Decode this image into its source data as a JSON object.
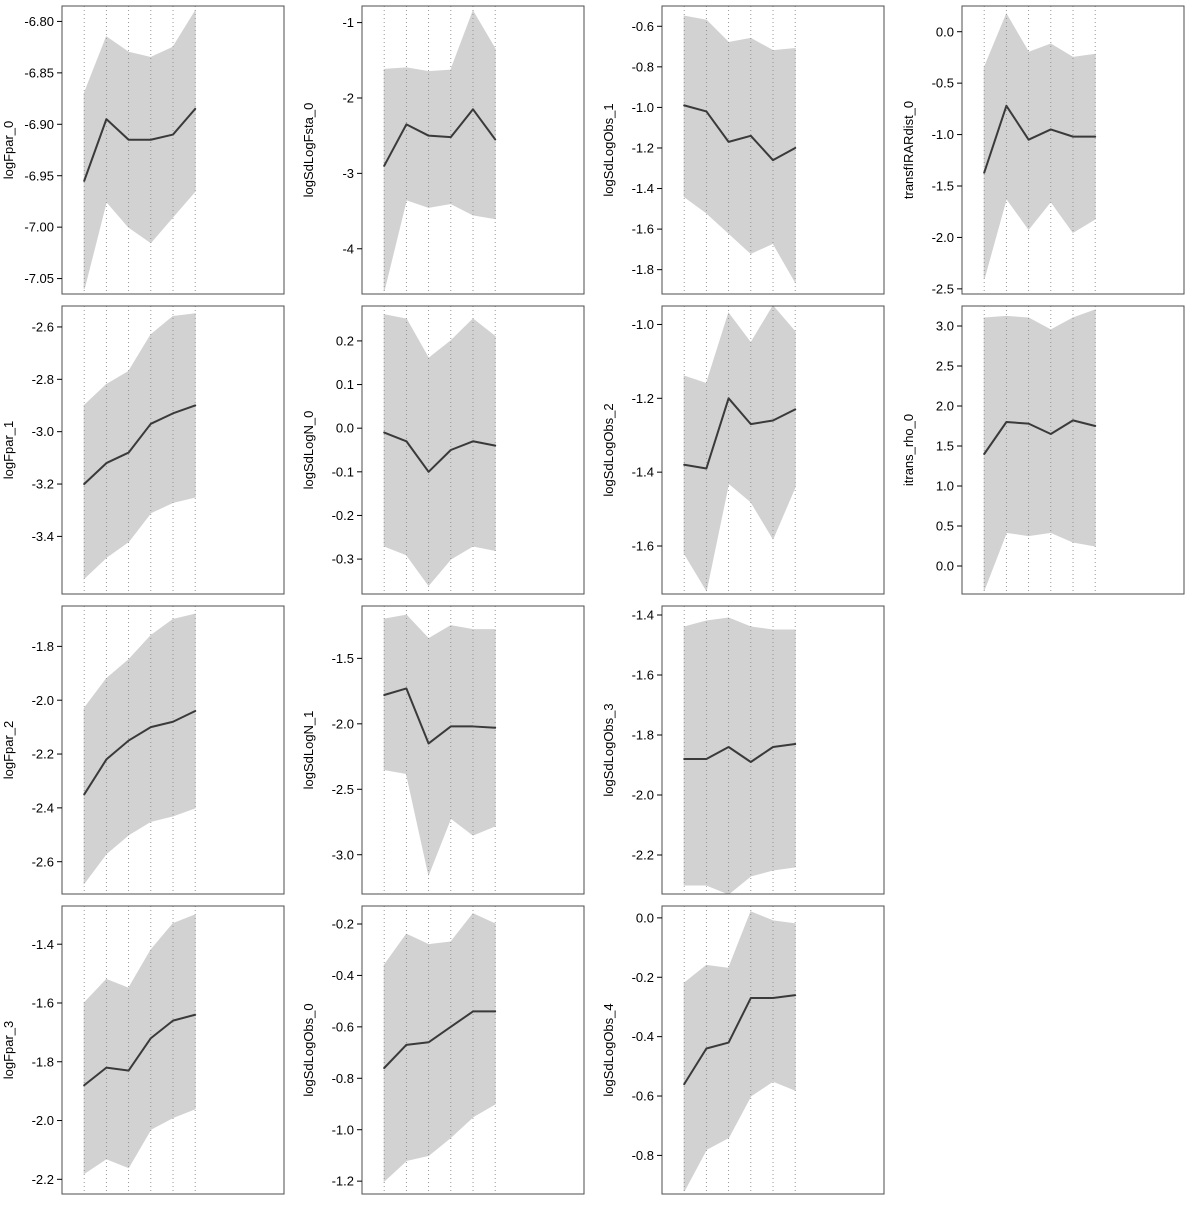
{
  "figure": {
    "title": "",
    "background": "#ffffff"
  },
  "colors": {
    "band_fill": "#d2d2d2",
    "estimate_line": "#3a3a3a",
    "box_border": "#4d4d4d",
    "grid_dotted": "#8c8c8c",
    "tick_color": "#000000",
    "text_color": "#000000"
  },
  "layout": {
    "columns": 4,
    "rows": 4,
    "empty_cells": [
      11,
      15
    ],
    "legend": "none",
    "grid": "dotted-vertical"
  },
  "chart_data": [
    {
      "type": "line",
      "title": "",
      "xlabel": "",
      "ylabel": "logFpar_0",
      "band": true,
      "x": [
        1,
        2,
        3,
        4,
        5,
        6
      ],
      "xlim": [
        0,
        10
      ],
      "ylim": [
        -7.065,
        -6.785
      ],
      "ytick_values": [
        -6.8,
        -6.85,
        -6.9,
        -6.95,
        -7.0,
        -7.05
      ],
      "ytick_labels": [
        "-6.80",
        "-6.85",
        "-6.90",
        "-6.95",
        "-7.00",
        "-7.05"
      ],
      "series": [
        {
          "name": "estimate",
          "values": [
            -6.955,
            -6.895,
            -6.915,
            -6.915,
            -6.91,
            -6.885
          ]
        },
        {
          "name": "ci_upper",
          "values": [
            -6.87,
            -6.815,
            -6.83,
            -6.835,
            -6.825,
            -6.79
          ]
        },
        {
          "name": "ci_lower",
          "values": [
            -7.06,
            -6.975,
            -7.0,
            -7.015,
            -6.99,
            -6.965
          ]
        }
      ]
    },
    {
      "type": "line",
      "title": "",
      "xlabel": "",
      "ylabel": "logSdLogFsta_0",
      "band": true,
      "x": [
        1,
        2,
        3,
        4,
        5,
        6
      ],
      "xlim": [
        0,
        10
      ],
      "ylim": [
        -4.6,
        -0.78
      ],
      "ytick_values": [
        -1,
        -2,
        -3,
        -4
      ],
      "ytick_labels": [
        "-1",
        "-2",
        "-3",
        "-4"
      ],
      "series": [
        {
          "name": "estimate",
          "values": [
            -2.9,
            -2.35,
            -2.5,
            -2.52,
            -2.15,
            -2.55
          ]
        },
        {
          "name": "ci_upper",
          "values": [
            -1.62,
            -1.6,
            -1.65,
            -1.63,
            -0.85,
            -1.35
          ]
        },
        {
          "name": "ci_lower",
          "values": [
            -4.55,
            -3.35,
            -3.45,
            -3.4,
            -3.55,
            -3.6
          ]
        }
      ]
    },
    {
      "type": "line",
      "title": "",
      "xlabel": "",
      "ylabel": "logSdLogObs_1",
      "band": true,
      "x": [
        1,
        2,
        3,
        4,
        5,
        6
      ],
      "xlim": [
        0,
        10
      ],
      "ylim": [
        -1.92,
        -0.5
      ],
      "ytick_values": [
        -0.6,
        -0.8,
        -1.0,
        -1.2,
        -1.4,
        -1.6,
        -1.8
      ],
      "ytick_labels": [
        "-0.6",
        "-0.8",
        "-1.0",
        "-1.2",
        "-1.4",
        "-1.6",
        "-1.8"
      ],
      "series": [
        {
          "name": "estimate",
          "values": [
            -0.99,
            -1.02,
            -1.17,
            -1.14,
            -1.26,
            -1.2
          ]
        },
        {
          "name": "ci_upper",
          "values": [
            -0.55,
            -0.57,
            -0.68,
            -0.66,
            -0.72,
            -0.71
          ]
        },
        {
          "name": "ci_lower",
          "values": [
            -1.44,
            -1.52,
            -1.62,
            -1.72,
            -1.67,
            -1.86
          ]
        }
      ]
    },
    {
      "type": "line",
      "title": "",
      "xlabel": "",
      "ylabel": "transfIRARdist_0",
      "band": true,
      "x": [
        1,
        2,
        3,
        4,
        5,
        6
      ],
      "xlim": [
        0,
        10
      ],
      "ylim": [
        -2.55,
        0.25
      ],
      "ytick_values": [
        0.0,
        -0.5,
        -1.0,
        -1.5,
        -2.0,
        -2.5
      ],
      "ytick_labels": [
        "0.0",
        "-0.5",
        "-1.0",
        "-1.5",
        "-2.0",
        "-2.5"
      ],
      "series": [
        {
          "name": "estimate",
          "values": [
            -1.37,
            -0.72,
            -1.05,
            -0.95,
            -1.02,
            -1.02
          ]
        },
        {
          "name": "ci_upper",
          "values": [
            -0.35,
            0.17,
            -0.2,
            -0.12,
            -0.25,
            -0.22
          ]
        },
        {
          "name": "ci_lower",
          "values": [
            -2.4,
            -1.62,
            -1.92,
            -1.65,
            -1.95,
            -1.82
          ]
        }
      ]
    },
    {
      "type": "line",
      "title": "",
      "xlabel": "",
      "ylabel": "logFpar_1",
      "band": true,
      "x": [
        1,
        2,
        3,
        4,
        5,
        6
      ],
      "xlim": [
        0,
        10
      ],
      "ylim": [
        -3.62,
        -2.52
      ],
      "ytick_values": [
        -2.6,
        -2.8,
        -3.0,
        -3.2,
        -3.4
      ],
      "ytick_labels": [
        "-2.6",
        "-2.8",
        "-3.0",
        "-3.2",
        "-3.4"
      ],
      "series": [
        {
          "name": "estimate",
          "values": [
            -3.2,
            -3.12,
            -3.08,
            -2.97,
            -2.93,
            -2.9
          ]
        },
        {
          "name": "ci_upper",
          "values": [
            -2.9,
            -2.82,
            -2.77,
            -2.63,
            -2.56,
            -2.55
          ]
        },
        {
          "name": "ci_lower",
          "values": [
            -3.56,
            -3.48,
            -3.42,
            -3.31,
            -3.27,
            -3.25
          ]
        }
      ]
    },
    {
      "type": "line",
      "title": "",
      "xlabel": "",
      "ylabel": "logSdLogN_0",
      "band": true,
      "x": [
        1,
        2,
        3,
        4,
        5,
        6
      ],
      "xlim": [
        0,
        10
      ],
      "ylim": [
        -0.38,
        0.28
      ],
      "ytick_values": [
        0.2,
        0.1,
        0.0,
        -0.1,
        -0.2,
        -0.3
      ],
      "ytick_labels": [
        "0.2",
        "0.1",
        "0.0",
        "-0.1",
        "-0.2",
        "-0.3"
      ],
      "series": [
        {
          "name": "estimate",
          "values": [
            -0.01,
            -0.03,
            -0.1,
            -0.05,
            -0.03,
            -0.04
          ]
        },
        {
          "name": "ci_upper",
          "values": [
            0.26,
            0.25,
            0.16,
            0.2,
            0.25,
            0.21
          ]
        },
        {
          "name": "ci_lower",
          "values": [
            -0.27,
            -0.29,
            -0.36,
            -0.3,
            -0.27,
            -0.28
          ]
        }
      ]
    },
    {
      "type": "line",
      "title": "",
      "xlabel": "",
      "ylabel": "logSdLogObs_2",
      "band": true,
      "x": [
        1,
        2,
        3,
        4,
        5,
        6
      ],
      "xlim": [
        0,
        10
      ],
      "ylim": [
        -1.73,
        -0.95
      ],
      "ytick_values": [
        -1.0,
        -1.2,
        -1.4,
        -1.6
      ],
      "ytick_labels": [
        "-1.0",
        "-1.2",
        "-1.4",
        "-1.6"
      ],
      "series": [
        {
          "name": "estimate",
          "values": [
            -1.38,
            -1.39,
            -1.2,
            -1.27,
            -1.26,
            -1.23
          ]
        },
        {
          "name": "ci_upper",
          "values": [
            -1.14,
            -1.16,
            -0.97,
            -1.05,
            -0.95,
            -1.02
          ]
        },
        {
          "name": "ci_lower",
          "values": [
            -1.62,
            -1.72,
            -1.43,
            -1.48,
            -1.58,
            -1.44
          ]
        }
      ]
    },
    {
      "type": "line",
      "title": "",
      "xlabel": "",
      "ylabel": "itrans_rho_0",
      "band": true,
      "x": [
        1,
        2,
        3,
        4,
        5,
        6
      ],
      "xlim": [
        0,
        10
      ],
      "ylim": [
        -0.35,
        3.25
      ],
      "ytick_values": [
        3.0,
        2.5,
        2.0,
        1.5,
        1.0,
        0.5,
        0.0
      ],
      "ytick_labels": [
        "3.0",
        "2.5",
        "2.0",
        "1.5",
        "1.0",
        "0.5",
        "0.0"
      ],
      "series": [
        {
          "name": "estimate",
          "values": [
            1.4,
            1.8,
            1.78,
            1.65,
            1.82,
            1.75
          ]
        },
        {
          "name": "ci_upper",
          "values": [
            3.1,
            3.12,
            3.1,
            2.95,
            3.1,
            3.2
          ]
        },
        {
          "name": "ci_lower",
          "values": [
            -0.3,
            0.42,
            0.38,
            0.42,
            0.3,
            0.25
          ]
        }
      ]
    },
    {
      "type": "line",
      "title": "",
      "xlabel": "",
      "ylabel": "logFpar_2",
      "band": true,
      "x": [
        1,
        2,
        3,
        4,
        5,
        6
      ],
      "xlim": [
        0,
        10
      ],
      "ylim": [
        -2.72,
        -1.65
      ],
      "ytick_values": [
        -1.8,
        -2.0,
        -2.2,
        -2.4,
        -2.6
      ],
      "ytick_labels": [
        "-1.8",
        "-2.0",
        "-2.2",
        "-2.4",
        "-2.6"
      ],
      "series": [
        {
          "name": "estimate",
          "values": [
            -2.35,
            -2.22,
            -2.15,
            -2.1,
            -2.08,
            -2.04
          ]
        },
        {
          "name": "ci_upper",
          "values": [
            -2.03,
            -1.92,
            -1.85,
            -1.76,
            -1.7,
            -1.68
          ]
        },
        {
          "name": "ci_lower",
          "values": [
            -2.68,
            -2.57,
            -2.5,
            -2.45,
            -2.43,
            -2.4
          ]
        }
      ]
    },
    {
      "type": "line",
      "title": "",
      "xlabel": "",
      "ylabel": "logSdLogN_1",
      "band": true,
      "x": [
        1,
        2,
        3,
        4,
        5,
        6
      ],
      "xlim": [
        0,
        10
      ],
      "ylim": [
        -3.3,
        -1.1
      ],
      "ytick_values": [
        -1.5,
        -2.0,
        -2.5,
        -3.0
      ],
      "ytick_labels": [
        "-1.5",
        "-2.0",
        "-2.5",
        "-3.0"
      ],
      "series": [
        {
          "name": "estimate",
          "values": [
            -1.78,
            -1.73,
            -2.15,
            -2.02,
            -2.02,
            -2.03
          ]
        },
        {
          "name": "ci_upper",
          "values": [
            -1.2,
            -1.17,
            -1.35,
            -1.25,
            -1.28,
            -1.28
          ]
        },
        {
          "name": "ci_lower",
          "values": [
            -2.35,
            -2.38,
            -3.15,
            -2.72,
            -2.85,
            -2.78
          ]
        }
      ]
    },
    {
      "type": "line",
      "title": "",
      "xlabel": "",
      "ylabel": "logSdLogObs_3",
      "band": true,
      "x": [
        1,
        2,
        3,
        4,
        5,
        6
      ],
      "xlim": [
        0,
        10
      ],
      "ylim": [
        -2.33,
        -1.37
      ],
      "ytick_values": [
        -1.4,
        -1.6,
        -1.8,
        -2.0,
        -2.2
      ],
      "ytick_labels": [
        "-1.4",
        "-1.6",
        "-1.8",
        "-2.0",
        "-2.2"
      ],
      "series": [
        {
          "name": "estimate",
          "values": [
            -1.88,
            -1.88,
            -1.84,
            -1.89,
            -1.84,
            -1.83
          ]
        },
        {
          "name": "ci_upper",
          "values": [
            -1.44,
            -1.42,
            -1.41,
            -1.44,
            -1.45,
            -1.45
          ]
        },
        {
          "name": "ci_lower",
          "values": [
            -2.3,
            -2.3,
            -2.33,
            -2.27,
            -2.25,
            -2.24
          ]
        }
      ]
    },
    {
      "type": "line",
      "title": "",
      "xlabel": "",
      "ylabel": "logFpar_3",
      "band": true,
      "x": [
        1,
        2,
        3,
        4,
        5,
        6
      ],
      "xlim": [
        0,
        10
      ],
      "ylim": [
        -2.25,
        -1.27
      ],
      "ytick_values": [
        -1.4,
        -1.6,
        -1.8,
        -2.0,
        -2.2
      ],
      "ytick_labels": [
        "-1.4",
        "-1.6",
        "-1.8",
        "-2.0",
        "-2.2"
      ],
      "series": [
        {
          "name": "estimate",
          "values": [
            -1.88,
            -1.82,
            -1.83,
            -1.72,
            -1.66,
            -1.64
          ]
        },
        {
          "name": "ci_upper",
          "values": [
            -1.6,
            -1.52,
            -1.55,
            -1.42,
            -1.33,
            -1.3
          ]
        },
        {
          "name": "ci_lower",
          "values": [
            -2.18,
            -2.13,
            -2.16,
            -2.03,
            -1.99,
            -1.96
          ]
        }
      ]
    },
    {
      "type": "line",
      "title": "",
      "xlabel": "",
      "ylabel": "logSdLogObs_0",
      "band": true,
      "x": [
        1,
        2,
        3,
        4,
        5,
        6
      ],
      "xlim": [
        0,
        10
      ],
      "ylim": [
        -1.25,
        -0.13
      ],
      "ytick_values": [
        -0.2,
        -0.4,
        -0.6,
        -0.8,
        -1.0,
        -1.2
      ],
      "ytick_labels": [
        "-0.2",
        "-0.4",
        "-0.6",
        "-0.8",
        "-1.0",
        "-1.2"
      ],
      "series": [
        {
          "name": "estimate",
          "values": [
            -0.76,
            -0.67,
            -0.66,
            -0.6,
            -0.54,
            -0.54
          ]
        },
        {
          "name": "ci_upper",
          "values": [
            -0.36,
            -0.24,
            -0.28,
            -0.27,
            -0.16,
            -0.2
          ]
        },
        {
          "name": "ci_lower",
          "values": [
            -1.2,
            -1.12,
            -1.1,
            -1.03,
            -0.95,
            -0.9
          ]
        }
      ]
    },
    {
      "type": "line",
      "title": "",
      "xlabel": "",
      "ylabel": "logSdLogObs_4",
      "band": true,
      "x": [
        1,
        2,
        3,
        4,
        5,
        6
      ],
      "xlim": [
        0,
        10
      ],
      "ylim": [
        -0.93,
        0.04
      ],
      "ytick_values": [
        0.0,
        -0.2,
        -0.4,
        -0.6,
        -0.8
      ],
      "ytick_labels": [
        "0.0",
        "-0.2",
        "-0.4",
        "-0.6",
        "-0.8"
      ],
      "series": [
        {
          "name": "estimate",
          "values": [
            -0.56,
            -0.44,
            -0.42,
            -0.27,
            -0.27,
            -0.26
          ]
        },
        {
          "name": "ci_upper",
          "values": [
            -0.22,
            -0.16,
            -0.17,
            0.02,
            -0.01,
            -0.02
          ]
        },
        {
          "name": "ci_lower",
          "values": [
            -0.92,
            -0.78,
            -0.74,
            -0.6,
            -0.55,
            -0.58
          ]
        }
      ]
    }
  ]
}
